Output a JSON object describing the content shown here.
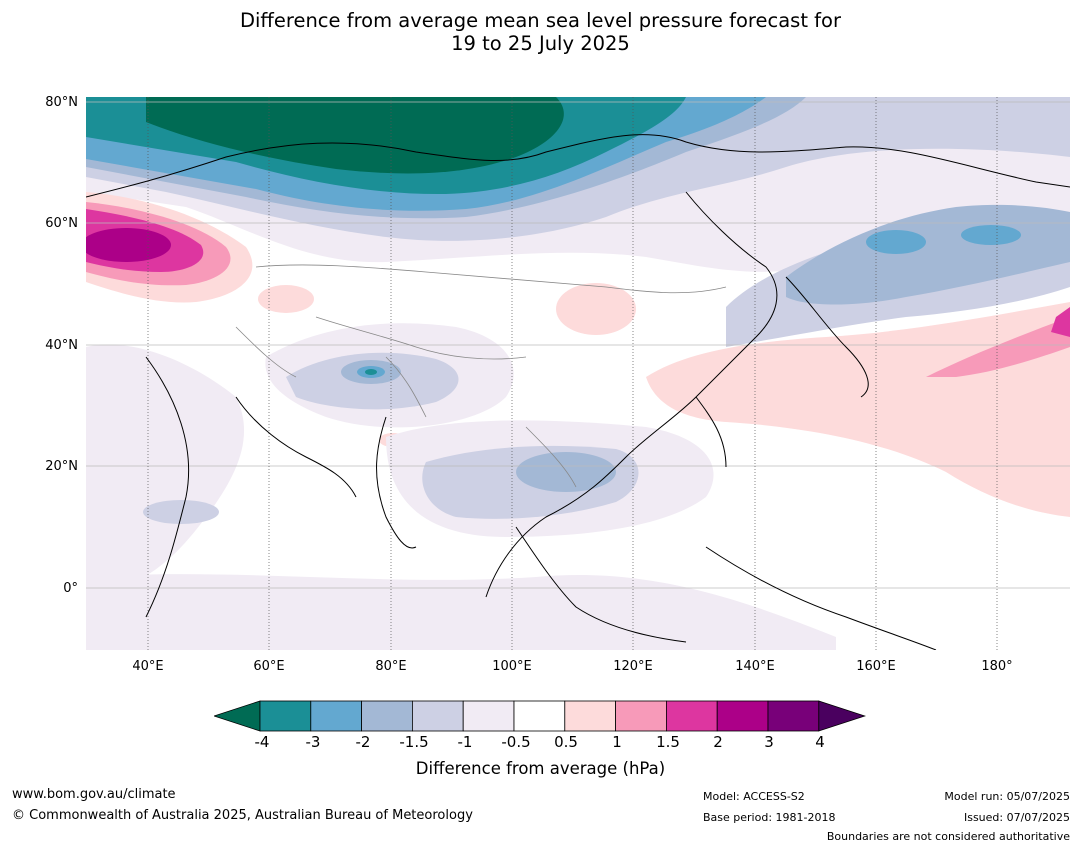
{
  "title": {
    "line1": "Difference from average mean sea level pressure forecast for",
    "line2": "19 to 25 July 2025"
  },
  "axes": {
    "lat_labels": [
      "80°N",
      "60°N",
      "40°N",
      "20°N",
      "0°"
    ],
    "lon_labels": [
      "40°E",
      "60°E",
      "80°E",
      "100°E",
      "120°E",
      "140°E",
      "160°E",
      "180°"
    ]
  },
  "colorbar": {
    "title": "Difference from average (hPa)",
    "ticks": [
      "-4",
      "-3",
      "-2",
      "-1.5",
      "-1",
      "-0.5",
      "0.5",
      "1",
      "1.5",
      "2",
      "3",
      "4"
    ],
    "colors": [
      "#006b54",
      "#1b8f96",
      "#63a8d0",
      "#a3b8d5",
      "#cdd0e4",
      "#f1ebf4",
      "#ffffff",
      "#fddbdb",
      "#f79ab9",
      "#dd36a0",
      "#ac0088",
      "#780079",
      "#4a005f"
    ]
  },
  "footer": {
    "url": "www.bom.gov.au/climate",
    "copyright": "© Commonwealth of Australia 2025, Australian Bureau of Meteorology",
    "model": "Model: ACCESS-S2",
    "base_period": "Base period: 1981-2018",
    "model_run": "Model run: 05/07/2025",
    "issued": "Issued: 07/07/2025",
    "disclaimer": "Boundaries are not considered authoritative"
  }
}
